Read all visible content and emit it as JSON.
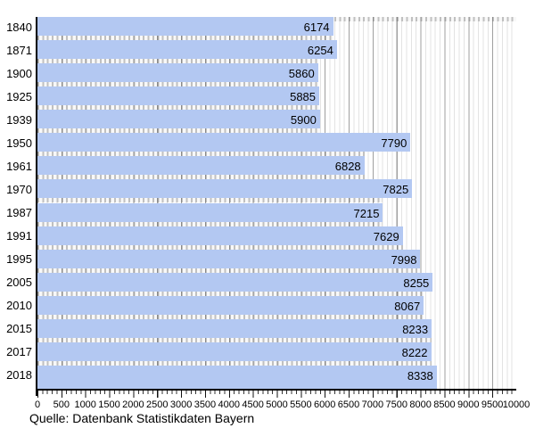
{
  "chart_data": {
    "type": "bar",
    "orientation": "horizontal",
    "title": "",
    "xlabel": "",
    "ylabel": "",
    "categories": [
      "1840",
      "1871",
      "1900",
      "1925",
      "1939",
      "1950",
      "1961",
      "1970",
      "1987",
      "1991",
      "1995",
      "2005",
      "2010",
      "2015",
      "2017",
      "2018"
    ],
    "values": [
      6174,
      6254,
      5860,
      5885,
      5900,
      7790,
      6828,
      7825,
      7215,
      7629,
      7998,
      8255,
      8067,
      8233,
      8222,
      8338
    ],
    "xlim": [
      0,
      10000
    ],
    "x_tick_step": 500,
    "x_minor_step": 100,
    "x_tick_labels": [
      "0",
      "500",
      "1000",
      "1500",
      "2000",
      "2500",
      "3000",
      "3500",
      "4000",
      "4500",
      "5000",
      "5500",
      "6000",
      "6500",
      "7000",
      "7500",
      "8000",
      "8500",
      "9000",
      "9500",
      "10000"
    ],
    "grid": true,
    "legend": "none",
    "bar_color": "#b3c8f2",
    "value_labels_inside": true
  },
  "caption": {
    "source_note": "Quelle: Datenbank Statistikdaten Bayern"
  }
}
